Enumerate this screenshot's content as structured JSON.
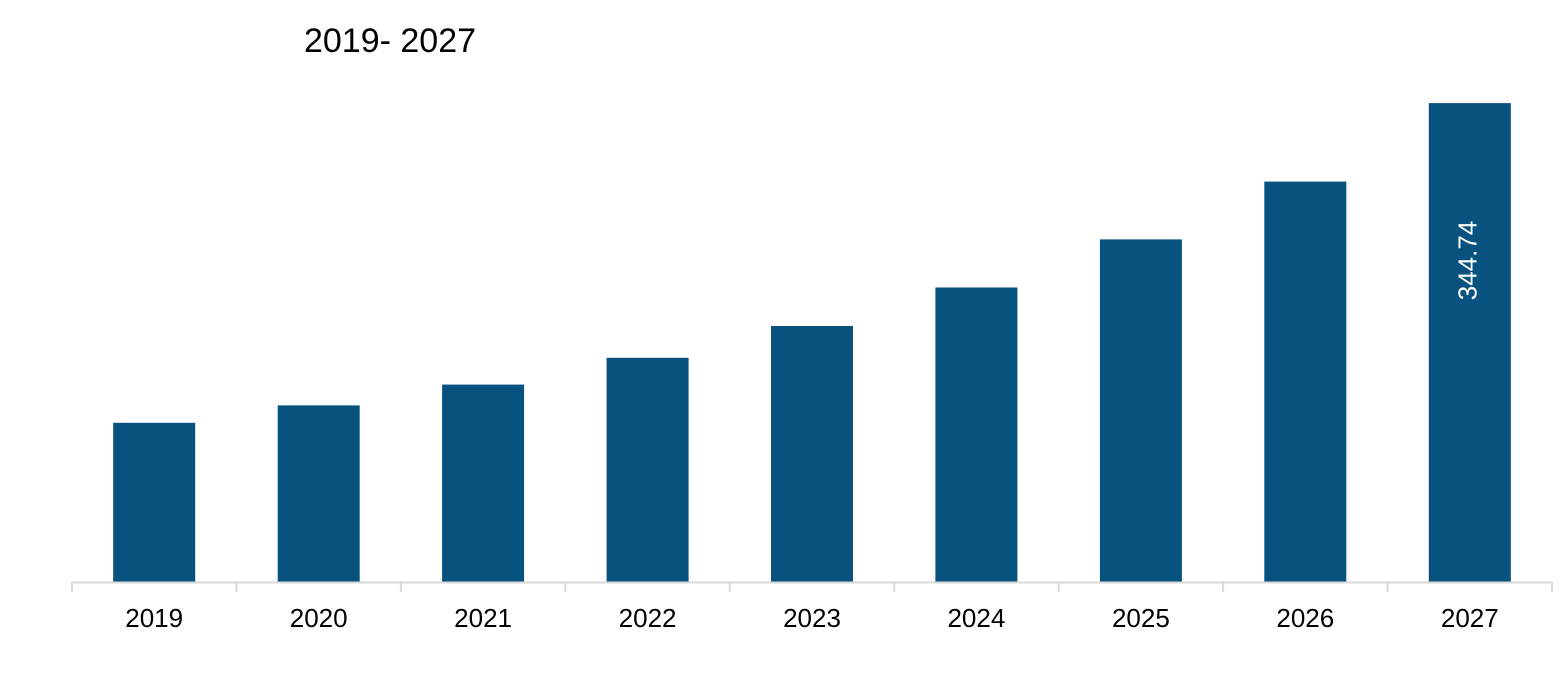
{
  "chart_data": {
    "type": "bar",
    "title": "2019- 2027",
    "xlabel": "",
    "ylabel": "",
    "categories": [
      "2019",
      "2020",
      "2021",
      "2022",
      "2023",
      "2024",
      "2025",
      "2026",
      "2027"
    ],
    "values": [
      114.6,
      127.1,
      142.1,
      161.4,
      184.3,
      212.0,
      246.6,
      288.2,
      344.74
    ],
    "data_labels": [
      {
        "category": "2027",
        "label": "344.74"
      }
    ],
    "ylim": [
      0,
      370
    ],
    "grid": false,
    "legend": "none",
    "bar_color": "#08527f",
    "axis_color": "#d9d9d9"
  }
}
